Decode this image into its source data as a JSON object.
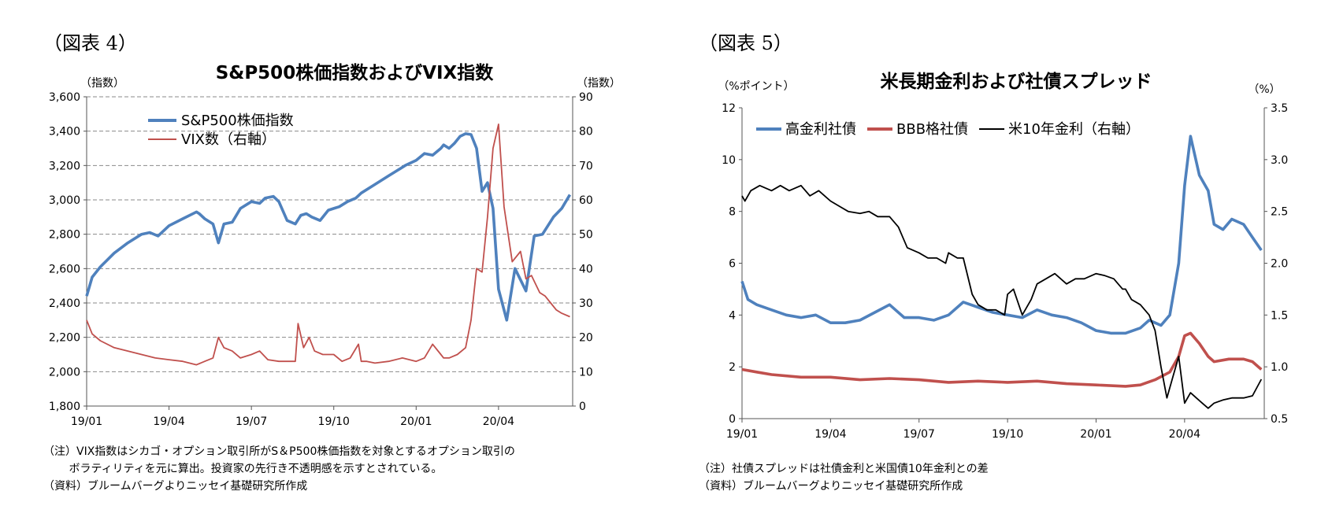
{
  "figures": [
    {
      "label": "（図表 4）",
      "notes": [
        "（注）VIX指数はシカゴ・オプション取引所がS＆P500株価指数を対象とするオプション取引の",
        "　　 ボラティリティを元に算出。投資家の先行き不透明感を示すとされている。",
        "（資料）ブルームバーグよりニッセイ基礎研究所作成"
      ]
    },
    {
      "label": "（図表 5）",
      "notes": [
        "（注）社債スプレッドは社債金利と米国債10年金利との差",
        "（資料）ブルームバーグよりニッセイ基礎研究所作成"
      ]
    }
  ],
  "chart_data": [
    {
      "type": "line",
      "title": "S&P500株価指数およびVIX指数",
      "ylabel": "（指数）",
      "y2label": "（指数）",
      "ylim": [
        1800,
        3600
      ],
      "y2lim": [
        0,
        90
      ],
      "yticks": [
        "1,800",
        "2,000",
        "2,200",
        "2,400",
        "2,600",
        "2,800",
        "3,000",
        "3,200",
        "3,400",
        "3,600"
      ],
      "y2ticks": [
        "0",
        "10",
        "20",
        "30",
        "40",
        "50",
        "60",
        "70",
        "80",
        "90"
      ],
      "xticks": [
        "19/01",
        "19/04",
        "19/07",
        "19/10",
        "20/01",
        "20/04"
      ],
      "xrange": [
        0,
        17.7
      ],
      "grid": true,
      "legend_position": "top-left",
      "series": [
        {
          "name": "S&P500株価指数",
          "color": "#4f81bd",
          "axis": "left",
          "x": [
            0,
            0.2,
            0.5,
            1.0,
            1.5,
            2.0,
            2.3,
            2.6,
            3.0,
            3.5,
            4.0,
            4.1,
            4.3,
            4.6,
            4.8,
            5.0,
            5.3,
            5.6,
            6.0,
            6.3,
            6.5,
            6.8,
            7.0,
            7.3,
            7.6,
            7.8,
            8.0,
            8.2,
            8.5,
            8.8,
            9.0,
            9.2,
            9.5,
            9.8,
            10.0,
            10.5,
            11.0,
            11.3,
            11.6,
            12.0,
            12.3,
            12.6,
            12.9,
            13.0,
            13.2,
            13.4,
            13.6,
            13.8,
            14.0,
            14.2,
            14.4,
            14.6,
            14.8,
            15.0,
            15.3,
            15.6,
            16.0,
            16.3,
            16.6,
            17.0,
            17.3,
            17.6
          ],
          "values": [
            2440,
            2550,
            2610,
            2690,
            2750,
            2800,
            2810,
            2790,
            2850,
            2890,
            2930,
            2920,
            2890,
            2860,
            2750,
            2860,
            2870,
            2950,
            2990,
            2980,
            3010,
            3020,
            2990,
            2880,
            2860,
            2910,
            2920,
            2900,
            2880,
            2940,
            2950,
            2960,
            2990,
            3010,
            3040,
            3090,
            3140,
            3170,
            3200,
            3230,
            3270,
            3260,
            3300,
            3320,
            3300,
            3330,
            3370,
            3385,
            3380,
            3300,
            3050,
            3100,
            2950,
            2480,
            2300,
            2600,
            2470,
            2790,
            2800,
            2900,
            2950,
            3030
          ]
        },
        {
          "name": "VIX数（右軸）",
          "color": "#c0504d",
          "axis": "right",
          "x": [
            0,
            0.2,
            0.5,
            1.0,
            1.5,
            2.0,
            2.5,
            3.0,
            3.5,
            4.0,
            4.3,
            4.6,
            4.8,
            5.0,
            5.3,
            5.6,
            6.0,
            6.3,
            6.6,
            7.0,
            7.3,
            7.6,
            7.7,
            7.9,
            8.1,
            8.3,
            8.6,
            9.0,
            9.3,
            9.6,
            9.9,
            10.0,
            10.2,
            10.5,
            11.0,
            11.5,
            12.0,
            12.3,
            12.6,
            12.9,
            13.0,
            13.2,
            13.5,
            13.8,
            14.0,
            14.2,
            14.4,
            14.6,
            14.8,
            15.0,
            15.2,
            15.5,
            15.8,
            16.0,
            16.2,
            16.5,
            16.7,
            16.9,
            17.1,
            17.3,
            17.6
          ],
          "values": [
            25,
            21,
            19,
            17,
            16,
            15,
            14,
            13.5,
            13,
            12,
            13,
            14,
            20,
            17,
            16,
            14,
            15,
            16,
            13.5,
            13,
            13,
            13,
            24,
            17,
            20,
            16,
            15,
            15,
            13,
            14,
            18,
            13,
            13,
            12.5,
            13,
            14,
            13,
            14,
            18,
            15,
            14,
            14,
            15,
            17,
            25,
            40,
            39,
            55,
            75,
            82,
            58,
            42,
            45,
            37,
            38,
            33,
            32,
            30,
            28,
            27,
            26
          ]
        }
      ]
    },
    {
      "type": "line",
      "title": "米長期金利および社債スプレッド",
      "ylabel": "（%ポイント）",
      "y2label": "（%）",
      "ylim": [
        0,
        12
      ],
      "y2lim": [
        0.5,
        3.5
      ],
      "yticks": [
        "0",
        "2",
        "4",
        "6",
        "8",
        "10",
        "12"
      ],
      "y2ticks": [
        "0.5",
        "1.0",
        "1.5",
        "2.0",
        "2.5",
        "3.0",
        "3.5"
      ],
      "xticks": [
        "19/01",
        "19/04",
        "19/07",
        "19/10",
        "20/01",
        "20/04"
      ],
      "xrange": [
        0,
        17.7
      ],
      "grid": false,
      "legend_position": "top",
      "series": [
        {
          "name": "高金利社債",
          "color": "#4f81bd",
          "axis": "left",
          "x": [
            0,
            0.2,
            0.5,
            1.0,
            1.5,
            2.0,
            2.5,
            3.0,
            3.5,
            4.0,
            4.5,
            5.0,
            5.5,
            6.0,
            6.5,
            7.0,
            7.5,
            8.0,
            8.5,
            9.0,
            9.5,
            10.0,
            10.5,
            11.0,
            11.5,
            12.0,
            12.5,
            13.0,
            13.5,
            13.8,
            14.0,
            14.2,
            14.5,
            14.8,
            15.0,
            15.2,
            15.5,
            15.8,
            16.0,
            16.3,
            16.6,
            17.0,
            17.3,
            17.6
          ],
          "values": [
            5.3,
            4.6,
            4.4,
            4.2,
            4.0,
            3.9,
            4.0,
            3.7,
            3.7,
            3.8,
            4.1,
            4.4,
            3.9,
            3.9,
            3.8,
            4.0,
            4.5,
            4.3,
            4.1,
            4.0,
            3.9,
            4.2,
            4.0,
            3.9,
            3.7,
            3.4,
            3.3,
            3.3,
            3.5,
            3.8,
            3.7,
            3.6,
            4.0,
            6.0,
            9.0,
            10.9,
            9.4,
            8.8,
            7.5,
            7.3,
            7.7,
            7.5,
            7.0,
            6.5
          ]
        },
        {
          "name": "BBB格社債",
          "color": "#c0504d",
          "axis": "left",
          "x": [
            0,
            0.5,
            1.0,
            2.0,
            3.0,
            4.0,
            5.0,
            6.0,
            7.0,
            8.0,
            9.0,
            10.0,
            11.0,
            12.0,
            13.0,
            13.5,
            14.0,
            14.5,
            14.8,
            15.0,
            15.2,
            15.5,
            15.8,
            16.0,
            16.5,
            17.0,
            17.3,
            17.6
          ],
          "values": [
            1.9,
            1.8,
            1.7,
            1.6,
            1.6,
            1.5,
            1.55,
            1.5,
            1.4,
            1.45,
            1.4,
            1.45,
            1.35,
            1.3,
            1.25,
            1.3,
            1.5,
            1.8,
            2.4,
            3.2,
            3.3,
            2.9,
            2.4,
            2.2,
            2.3,
            2.3,
            2.2,
            1.9
          ]
        },
        {
          "name": "米10年金利（右軸）",
          "color": "#000000",
          "axis": "right",
          "x": [
            0,
            0.1,
            0.3,
            0.6,
            1.0,
            1.3,
            1.6,
            2.0,
            2.3,
            2.6,
            3.0,
            3.3,
            3.6,
            4.0,
            4.3,
            4.6,
            5.0,
            5.3,
            5.6,
            6.0,
            6.3,
            6.6,
            6.9,
            7.0,
            7.3,
            7.5,
            7.8,
            8.0,
            8.3,
            8.6,
            8.9,
            9.0,
            9.2,
            9.5,
            9.8,
            10.0,
            10.3,
            10.6,
            11.0,
            11.3,
            11.6,
            12.0,
            12.3,
            12.6,
            12.9,
            13.0,
            13.2,
            13.5,
            13.8,
            14.0,
            14.2,
            14.4,
            14.6,
            14.8,
            15.0,
            15.2,
            15.4,
            15.6,
            15.8,
            16.0,
            16.3,
            16.6,
            17.0,
            17.3,
            17.6
          ],
          "values": [
            2.65,
            2.6,
            2.7,
            2.75,
            2.7,
            2.75,
            2.7,
            2.75,
            2.65,
            2.7,
            2.6,
            2.55,
            2.5,
            2.48,
            2.5,
            2.45,
            2.45,
            2.35,
            2.15,
            2.1,
            2.05,
            2.05,
            2.0,
            2.1,
            2.05,
            2.05,
            1.7,
            1.6,
            1.55,
            1.55,
            1.5,
            1.7,
            1.75,
            1.5,
            1.65,
            1.8,
            1.85,
            1.9,
            1.8,
            1.85,
            1.85,
            1.9,
            1.88,
            1.85,
            1.75,
            1.75,
            1.65,
            1.6,
            1.5,
            1.35,
            1.0,
            0.7,
            0.9,
            1.1,
            0.65,
            0.75,
            0.7,
            0.65,
            0.6,
            0.65,
            0.68,
            0.7,
            0.7,
            0.72,
            0.88
          ]
        }
      ]
    }
  ]
}
